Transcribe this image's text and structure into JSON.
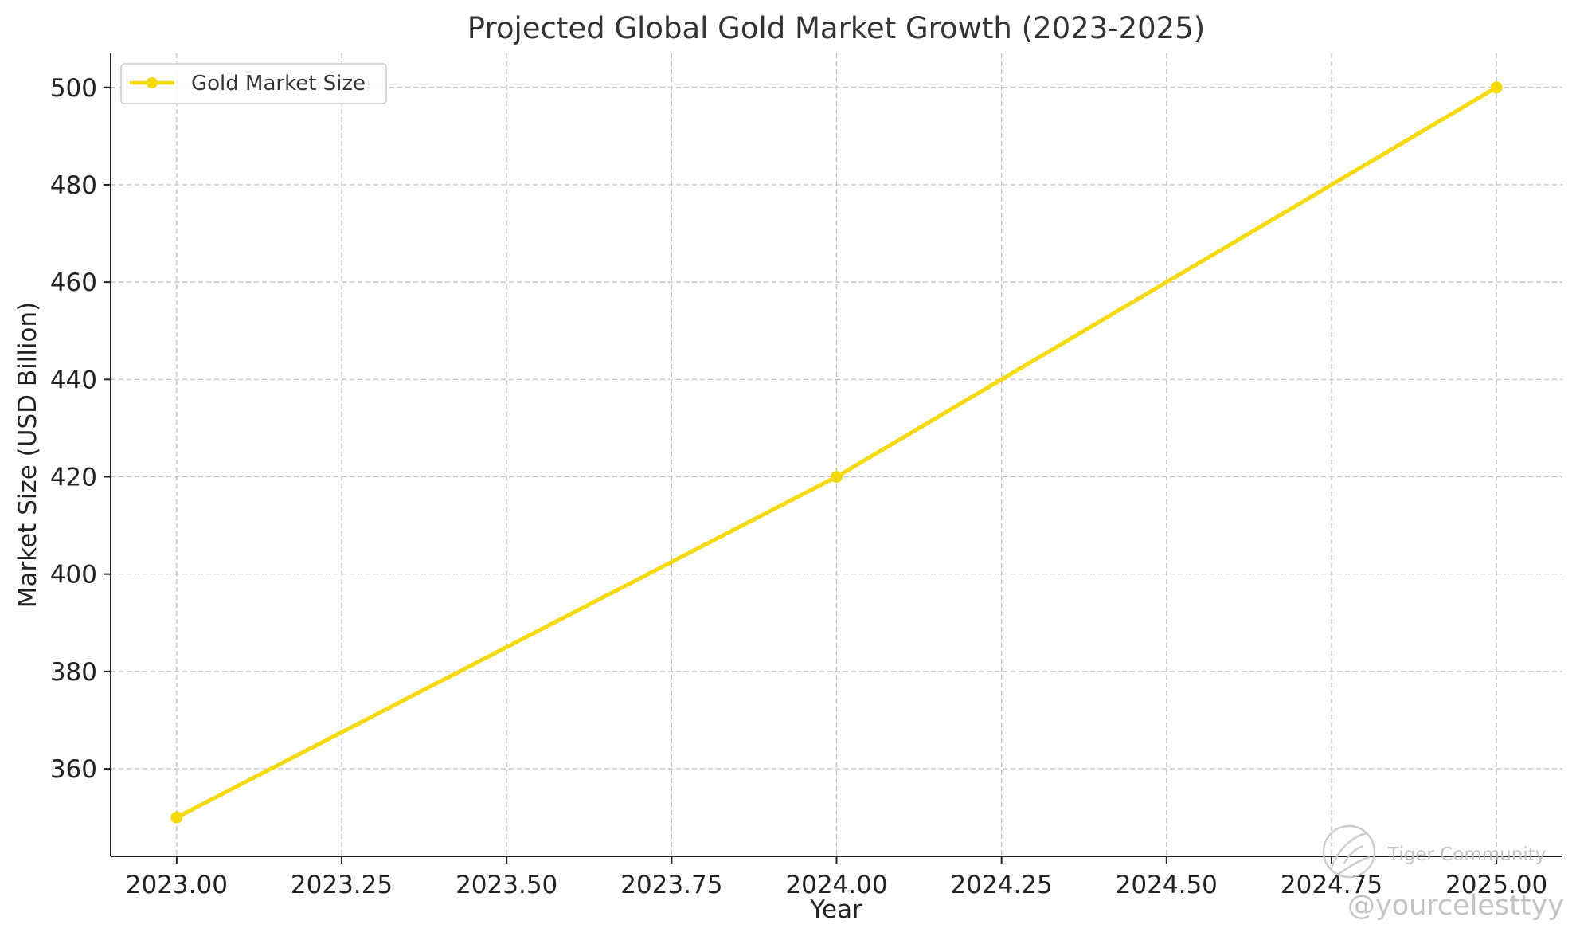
{
  "chart_data": {
    "type": "line",
    "title": "Projected Global Gold Market Growth (2023-2025)",
    "xlabel": "Year",
    "ylabel": "Market Size (USD Billion)",
    "xlim": [
      2022.9,
      2025.1
    ],
    "ylim": [
      342,
      507
    ],
    "x_ticks": [
      "2023.00",
      "2023.25",
      "2023.50",
      "2023.75",
      "2024.00",
      "2024.25",
      "2024.50",
      "2024.75",
      "2025.00"
    ],
    "y_ticks": [
      "360",
      "380",
      "400",
      "420",
      "440",
      "460",
      "480",
      "500"
    ],
    "grid": true,
    "legend_position": "top-left",
    "series": [
      {
        "name": "Gold Market Size",
        "color": "#f5d90a",
        "marker": "circle",
        "x": [
          2023,
          2024,
          2025
        ],
        "y": [
          350,
          420,
          500
        ]
      }
    ]
  },
  "watermark": {
    "brand": "Tiger Community",
    "handle": "@yourcelesttyy",
    "logo": "tiger-logo"
  }
}
